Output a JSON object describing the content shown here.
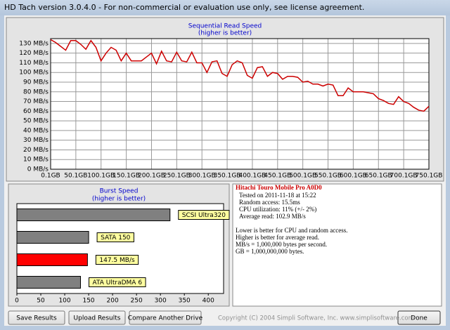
{
  "window": {
    "title": "HD Tach version 3.0.4.0  - For non-commercial or evaluation use only, see license agreement."
  },
  "chart_data": [
    {
      "type": "line",
      "title": "Sequential Read Speed",
      "subtitle": "(higher is better)",
      "x": [
        0.1,
        10,
        20,
        30,
        40,
        50,
        60,
        70,
        80,
        90,
        100,
        110,
        120,
        130,
        140,
        150,
        160,
        170,
        180,
        190,
        200,
        210,
        220,
        230,
        240,
        250,
        260,
        270,
        280,
        290,
        300,
        310,
        320,
        330,
        340,
        350,
        360,
        370,
        380,
        390,
        400,
        410,
        420,
        430,
        440,
        450,
        460,
        470,
        480,
        490,
        500,
        510,
        520,
        530,
        540,
        550,
        560,
        570,
        580,
        590,
        600,
        610,
        620,
        630,
        640,
        650,
        660,
        670,
        680,
        690,
        700,
        710,
        720,
        730,
        740,
        750
      ],
      "series": [
        {
          "color": "#cc0000",
          "values": [
            134,
            131,
            127,
            123,
            133,
            133,
            129,
            124,
            133,
            126,
            112,
            120,
            126,
            123,
            112,
            120,
            112,
            112,
            112,
            116,
            120,
            109,
            122,
            112,
            111,
            121,
            112,
            111,
            121,
            110,
            110,
            100,
            111,
            112,
            99,
            96,
            108,
            112,
            110,
            97,
            94,
            105,
            106,
            96,
            100,
            99,
            93,
            96,
            96,
            95,
            90,
            91,
            88,
            88,
            86,
            88,
            87,
            76,
            76,
            84,
            80,
            80,
            80,
            79,
            78,
            73,
            71,
            68,
            67,
            75,
            70,
            68,
            64,
            61,
            60,
            65
          ]
        }
      ],
      "xlim": [
        0.1,
        750.1
      ],
      "xticks": [
        {
          "value": 0.1,
          "label": "0.1GB"
        },
        {
          "value": 50.1,
          "label": "50.1GB"
        },
        {
          "value": 100.1,
          "label": "100.1GB"
        },
        {
          "value": 150.1,
          "label": "150.1GB"
        },
        {
          "value": 200.1,
          "label": "200.1GB"
        },
        {
          "value": 250.1,
          "label": "250.1GB"
        },
        {
          "value": 300.1,
          "label": "300.1GB"
        },
        {
          "value": 350.1,
          "label": "350.1GB"
        },
        {
          "value": 400.1,
          "label": "400.1GB"
        },
        {
          "value": 450.1,
          "label": "450.1GB"
        },
        {
          "value": 500.1,
          "label": "500.1GB"
        },
        {
          "value": 550.1,
          "label": "550.1GB"
        },
        {
          "value": 600.1,
          "label": "600.1GB"
        },
        {
          "value": 650.1,
          "label": "650.1GB"
        },
        {
          "value": 700.1,
          "label": "700.1GB"
        },
        {
          "value": 750.1,
          "label": "750.1GB"
        }
      ],
      "ylim": [
        0,
        135
      ],
      "yticks": [
        {
          "value": 0,
          "label": "0 MB/s"
        },
        {
          "value": 10,
          "label": "10 MB/s"
        },
        {
          "value": 20,
          "label": "20 MB/s"
        },
        {
          "value": 30,
          "label": "30 MB/s"
        },
        {
          "value": 40,
          "label": "40 MB/s"
        },
        {
          "value": 50,
          "label": "50 MB/s"
        },
        {
          "value": 60,
          "label": "60 MB/s"
        },
        {
          "value": 70,
          "label": "70 MB/s"
        },
        {
          "value": 80,
          "label": "80 MB/s"
        },
        {
          "value": 90,
          "label": "90 MB/s"
        },
        {
          "value": 100,
          "label": "100 MB/s"
        },
        {
          "value": 110,
          "label": "110 MB/s"
        },
        {
          "value": 120,
          "label": "120 MB/s"
        },
        {
          "value": 130,
          "label": "130 MB/s"
        }
      ],
      "grid": true
    },
    {
      "type": "hbar",
      "title": "Burst Speed",
      "subtitle": "(higher is better)",
      "categories": [
        "SCSI Ultra320",
        "SATA 150",
        null,
        "ATA UltraDMA 6"
      ],
      "values": [
        320,
        150,
        147.5,
        133
      ],
      "value_labels": [
        null,
        null,
        "147.5 MB/s",
        null
      ],
      "colors": [
        "#808080",
        "#808080",
        "#ff0000",
        "#808080"
      ],
      "xlim": [
        0,
        432
      ],
      "xticks": [
        0,
        50,
        100,
        150,
        200,
        250,
        300,
        350,
        400
      ],
      "grid": false
    }
  ],
  "info": {
    "drive": "Hitachi Touro Mobile Pro A0D0",
    "details": [
      "Tested on 2011-11-18 at 15:22",
      "Random access: 15.5ms",
      "CPU utilization: 11% (+/- 2%)",
      "Average read: 102.9 MB/s"
    ],
    "notes": [
      "Lower is better for CPU and random access.",
      "Higher is better for average read.",
      "MB/s = 1,000,000 bytes per second.",
      "GB = 1,000,000,000 bytes."
    ]
  },
  "buttons": [
    "Save Results",
    "Upload Results",
    "Compare Another Drive",
    "Done"
  ],
  "copyright": "Copyright (C) 2004 Simpli Software, Inc. www.simplisoftware.com"
}
